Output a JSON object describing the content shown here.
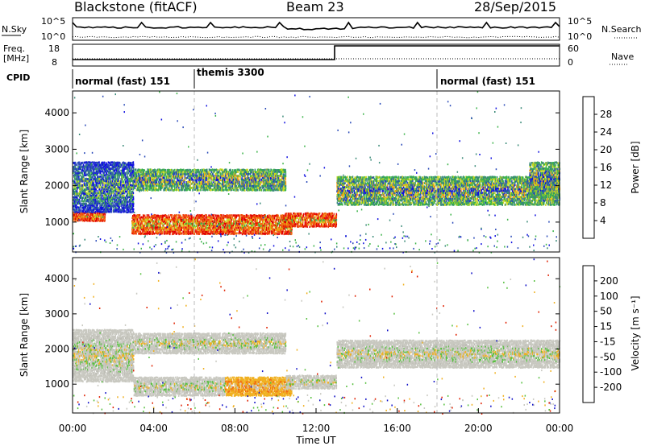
{
  "header": {
    "station": "Blackstone (fitACF)",
    "beam": "Beam 23",
    "date": "28/Sep/2015"
  },
  "top_panels": {
    "nsky_label": "N.Sky",
    "nsky_scale_max": "10^5",
    "nsky_scale_min": "10^0",
    "nsearch_label": "N.Search",
    "freq_label": "Freq.",
    "freq_unit": "[MHz]",
    "freq_ticks": [
      "18",
      "8"
    ],
    "nave_label": "Nave",
    "nave_ticks": [
      "60",
      "0"
    ],
    "cpid_label": "CPID",
    "cpid_segments": [
      {
        "label": "normal (fast) 151",
        "start_hour": 0
      },
      {
        "label": "themis 3300",
        "start_hour": 6
      },
      {
        "label": "normal (fast) 151",
        "start_hour": 18
      }
    ],
    "nsky_right_max": "10^5",
    "nsky_right_min": "10^0"
  },
  "chart_data": [
    {
      "type": "heatmap",
      "name": "power",
      "ylabel": "Slant Range [km]",
      "xlabel": "",
      "xlim": [
        0,
        24
      ],
      "ylim": [
        180,
        4600
      ],
      "yticks": [
        "1000",
        "2000",
        "3000",
        "4000"
      ],
      "colorbar_label": "Power [dB]",
      "colorbar_ticks": [
        "4",
        "8",
        "12",
        "16",
        "20",
        "24",
        "28"
      ],
      "colorbar_colors": [
        "#1010e0",
        "#2a4ab8",
        "#3a8a78",
        "#3cb44a",
        "#c8d820",
        "#f0a010",
        "#f06010",
        "#e00000"
      ],
      "bands": [
        {
          "x0": 0.0,
          "x1": 1.6,
          "y0": 1060,
          "y1": 1320,
          "level": "high"
        },
        {
          "x0": 0.0,
          "x1": 3.0,
          "y0": 1300,
          "y1": 2700,
          "level": "low"
        },
        {
          "x0": 2.9,
          "x1": 10.8,
          "y0": 700,
          "y1": 1250,
          "level": "high"
        },
        {
          "x0": 3.0,
          "x1": 10.5,
          "y0": 1900,
          "y1": 2500,
          "level": "mid"
        },
        {
          "x0": 10.3,
          "x1": 13.0,
          "y0": 900,
          "y1": 1300,
          "level": "high"
        },
        {
          "x0": 13.0,
          "x1": 24.0,
          "y0": 1500,
          "y1": 2300,
          "level": "mid"
        },
        {
          "x0": 22.5,
          "x1": 24.0,
          "y0": 1700,
          "y1": 2700,
          "level": "mid"
        }
      ]
    },
    {
      "type": "heatmap",
      "name": "velocity",
      "ylabel": "Slant Range [km]",
      "xlabel": "Time UT",
      "xlim": [
        0,
        24
      ],
      "ylim": [
        180,
        4600
      ],
      "yticks": [
        "1000",
        "2000",
        "3000",
        "4000"
      ],
      "xticks": [
        "00:00",
        "04:00",
        "08:00",
        "12:00",
        "16:00",
        "20:00",
        "00:00"
      ],
      "colorbar_label": "Velocity [m s⁻¹]",
      "colorbar_ticks": [
        "200",
        "100",
        "50",
        "15",
        "-15",
        "-50",
        "-100",
        "-200"
      ],
      "colorbar_colors": [
        "#1010c8",
        "#2a52b8",
        "#3a8a68",
        "#58c040",
        "#c8c8c0",
        "#f0b020",
        "#f07010",
        "#e02000",
        "#d00000"
      ],
      "bands": [
        {
          "x0": 0.0,
          "x1": 3.0,
          "y0": 1100,
          "y1": 2600,
          "level": "grey"
        },
        {
          "x0": 3.0,
          "x1": 10.5,
          "y0": 1900,
          "y1": 2500,
          "level": "grey"
        },
        {
          "x0": 3.0,
          "x1": 7.5,
          "y0": 700,
          "y1": 1250,
          "level": "grey"
        },
        {
          "x0": 7.5,
          "x1": 10.8,
          "y0": 700,
          "y1": 1250,
          "level": "orange"
        },
        {
          "x0": 10.5,
          "x1": 13.0,
          "y0": 900,
          "y1": 1300,
          "level": "grey"
        },
        {
          "x0": 13.0,
          "x1": 24.0,
          "y0": 1500,
          "y1": 2300,
          "level": "grey"
        }
      ]
    }
  ]
}
